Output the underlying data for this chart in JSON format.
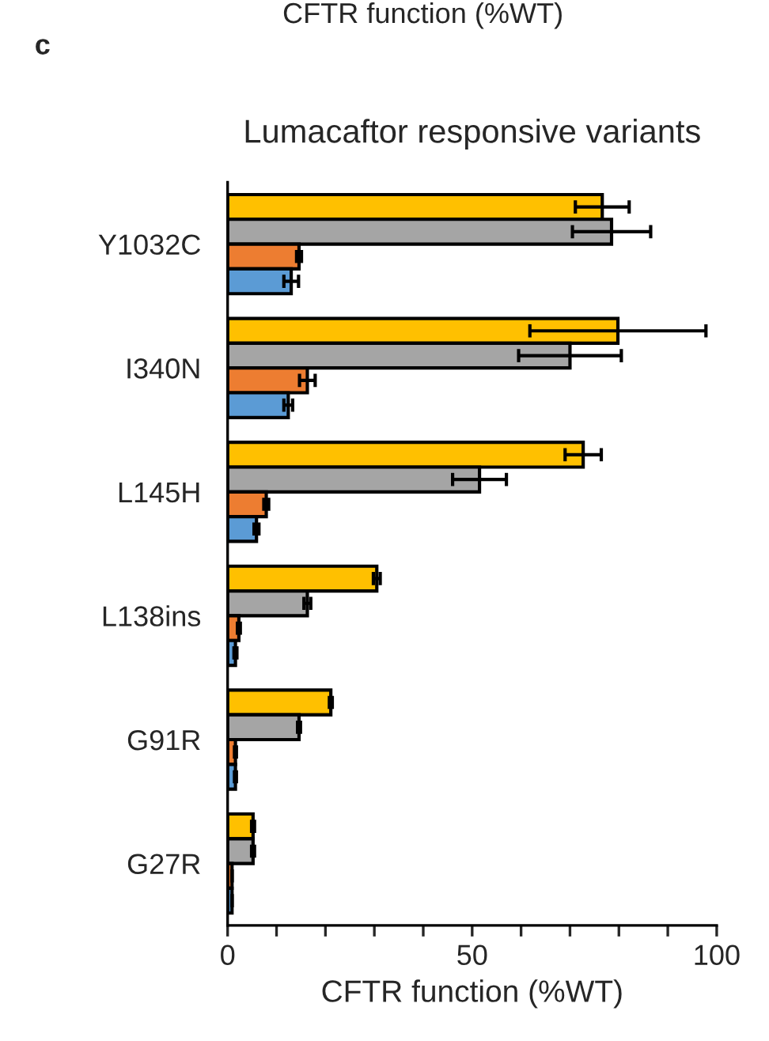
{
  "chart_data": {
    "type": "bar",
    "orientation": "horizontal",
    "title": "Lumacaftor responsive variants",
    "xlabel": "CFTR function (%WT)",
    "annotations": [
      "c",
      "CFTR function (%WT)"
    ],
    "categories": [
      "Y1032C",
      "I340N",
      "L145H",
      "L138ins",
      "G91R",
      "G27R"
    ],
    "series": [
      {
        "color": "#ffc000",
        "values": [
          76.6,
          79.8,
          72.7,
          30.5,
          21.1,
          5.2
        ],
        "errors": [
          5.5,
          18,
          3.7,
          0.7,
          0.3,
          0.3
        ]
      },
      {
        "color": "#a5a5a5",
        "values": [
          78.5,
          70,
          51.5,
          16.3,
          14.6,
          5.2
        ],
        "errors": [
          8,
          10.5,
          5.5,
          0.7,
          0.3,
          0.3
        ]
      },
      {
        "color": "#ed7d31",
        "values": [
          14.6,
          16.3,
          7.9,
          2.3,
          1.6,
          0.9
        ],
        "errors": [
          0.5,
          1.6,
          0.5,
          0.3,
          0.2,
          null
        ]
      },
      {
        "color": "#5b9bd5",
        "values": [
          13,
          12.4,
          5.9,
          1.6,
          1.6,
          0.9
        ],
        "errors": [
          1.5,
          0.9,
          0.5,
          0.3,
          0.2,
          null
        ]
      }
    ],
    "xlim": [
      0,
      100
    ],
    "xticks": [
      0,
      {
        "value": 10,
        "label": null
      },
      {
        "value": 20,
        "label": null
      },
      {
        "value": 30,
        "label": null
      },
      {
        "value": 40,
        "label": null
      },
      50,
      {
        "value": 60,
        "label": null
      },
      {
        "value": 70,
        "label": null
      },
      {
        "value": 80,
        "label": null
      },
      {
        "value": 90,
        "label": null
      },
      100
    ],
    "grid": false,
    "legend": false
  }
}
